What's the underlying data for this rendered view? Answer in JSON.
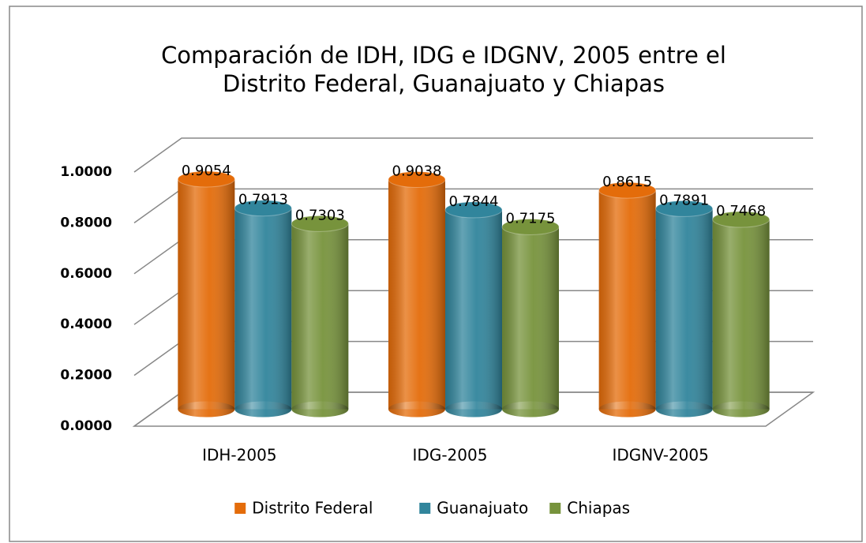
{
  "chart_data": {
    "type": "bar3d",
    "title": [
      "Comparación de IDH, IDG e IDGNV, 2005 entre el",
      "Distrito Federal, Guanajuato y Chiapas"
    ],
    "categories": [
      "IDH-2005",
      "IDG-2005",
      "IDGNV-2005"
    ],
    "series": [
      {
        "name": "Distrito Federal",
        "color": "#e46c0a",
        "values": [
          0.9054,
          0.9038,
          0.8615
        ]
      },
      {
        "name": "Guanajuato",
        "color": "#31859c",
        "values": [
          0.7913,
          0.7844,
          0.7891
        ]
      },
      {
        "name": "Chiapas",
        "color": "#77933c",
        "values": [
          0.7303,
          0.7175,
          0.7468
        ]
      }
    ],
    "ylim": [
      0,
      1
    ],
    "yticks": [
      {
        "value": 0,
        "label": "0.0000"
      },
      {
        "value": 0.2,
        "label": "0.2000"
      },
      {
        "value": 0.4,
        "label": "0.4000"
      },
      {
        "value": 0.6,
        "label": "0.6000"
      },
      {
        "value": 0.8,
        "label": "0.8000"
      },
      {
        "value": 1,
        "label": "1.0000"
      }
    ],
    "grid": true,
    "legend": "bottom"
  }
}
